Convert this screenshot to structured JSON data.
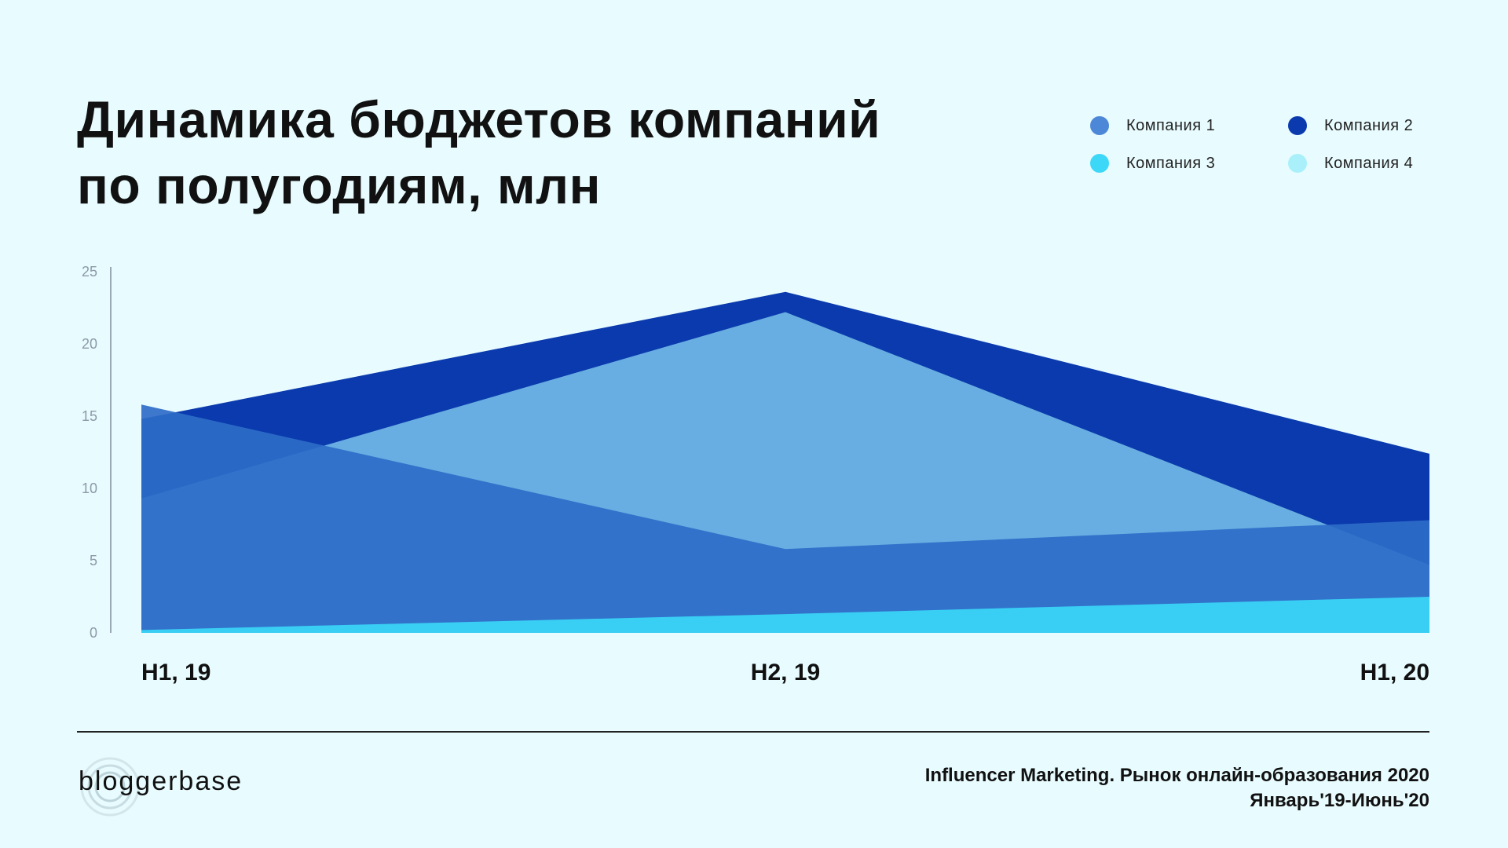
{
  "header": {
    "title_line1": "Динамика бюджетов компаний",
    "title_line2": "по полугодиям, млн"
  },
  "legend": [
    {
      "label": "Компания 1",
      "color": "#4d88d8"
    },
    {
      "label": "Компания 2",
      "color": "#0a3aad"
    },
    {
      "label": "Компания 3",
      "color": "#3dd8f7"
    },
    {
      "label": "Компания 4",
      "color": "#a9f0fb"
    }
  ],
  "chart_data": {
    "type": "area",
    "title": "Динамика бюджетов компаний по полугодиям, млн",
    "categories": [
      "H1, 19",
      "H2, 19",
      "H1, 20"
    ],
    "y_ticks": [
      0,
      5,
      10,
      15,
      20,
      25
    ],
    "ylim": [
      0,
      25
    ],
    "grid": false,
    "legend_position": "top-right",
    "series": [
      {
        "name": "Компания 2",
        "values": [
          14.8,
          23.6,
          12.4
        ],
        "color": "#0a3aad"
      },
      {
        "name": "Компания 4",
        "values": [
          9.3,
          22.2,
          4.7
        ],
        "color": "#71b9e6"
      },
      {
        "name": "Компания 1",
        "values": [
          15.8,
          5.8,
          7.8
        ],
        "color": "#2e6cc8"
      },
      {
        "name": "Компания 3",
        "values": [
          0.2,
          1.3,
          2.5
        ],
        "color": "#39d6f7"
      }
    ]
  },
  "footer": {
    "logo": "bloggerbase",
    "source_line1": "Influencer Marketing. Рынок онлайн-образования 2020",
    "source_line2": "Январь'19-Июнь'20"
  }
}
